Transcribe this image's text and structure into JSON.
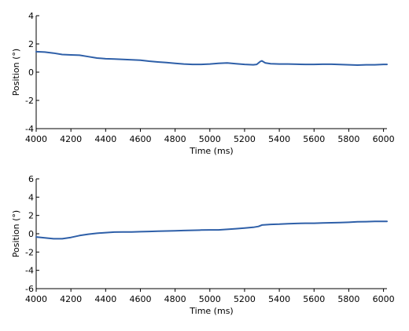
{
  "chart_data": [
    {
      "type": "line",
      "title": "",
      "xlabel": "Time (ms)",
      "ylabel": "Position (°)",
      "xlim": [
        4000,
        6020
      ],
      "ylim": [
        -4,
        4
      ],
      "xticks": [
        4000,
        4200,
        4400,
        4600,
        4800,
        5000,
        5200,
        5400,
        5600,
        5800,
        6000
      ],
      "yticks": [
        -4,
        -2,
        0,
        2,
        4
      ],
      "grid": false,
      "color": "#2e5fa8",
      "series": [
        {
          "x": [
            4000,
            4050,
            4100,
            4150,
            4200,
            4250,
            4300,
            4350,
            4400,
            4450,
            4500,
            4550,
            4600,
            4650,
            4700,
            4750,
            4800,
            4850,
            4900,
            4950,
            5000,
            5050,
            5100,
            5150,
            5200,
            5250,
            5270,
            5290,
            5300,
            5320,
            5350,
            5400,
            5450,
            5500,
            5550,
            5600,
            5650,
            5700,
            5750,
            5800,
            5850,
            5900,
            5950,
            6000,
            6020
          ],
          "y": [
            1.45,
            1.42,
            1.35,
            1.25,
            1.22,
            1.2,
            1.1,
            1.0,
            0.95,
            0.93,
            0.9,
            0.88,
            0.85,
            0.78,
            0.72,
            0.68,
            0.62,
            0.58,
            0.55,
            0.55,
            0.58,
            0.62,
            0.65,
            0.6,
            0.55,
            0.52,
            0.55,
            0.75,
            0.8,
            0.65,
            0.6,
            0.58,
            0.58,
            0.56,
            0.55,
            0.55,
            0.56,
            0.56,
            0.54,
            0.52,
            0.5,
            0.52,
            0.52,
            0.55,
            0.55
          ]
        }
      ]
    },
    {
      "type": "line",
      "title": "",
      "xlabel": "Time (ms)",
      "ylabel": "Position (°)",
      "xlim": [
        4000,
        6020
      ],
      "ylim": [
        -6,
        6
      ],
      "xticks": [
        4000,
        4200,
        4400,
        4600,
        4800,
        5000,
        5200,
        5400,
        5600,
        5800,
        6000
      ],
      "yticks": [
        -6,
        -4,
        -2,
        0,
        2,
        4,
        6
      ],
      "grid": false,
      "color": "#2e5fa8",
      "series": [
        {
          "x": [
            4000,
            4050,
            4100,
            4150,
            4200,
            4250,
            4300,
            4350,
            4400,
            4450,
            4500,
            4550,
            4600,
            4650,
            4700,
            4750,
            4800,
            4850,
            4900,
            4950,
            5000,
            5050,
            5100,
            5150,
            5200,
            5250,
            5280,
            5300,
            5350,
            5400,
            5450,
            5500,
            5550,
            5600,
            5650,
            5700,
            5750,
            5800,
            5850,
            5900,
            5950,
            6000,
            6020
          ],
          "y": [
            -0.35,
            -0.45,
            -0.55,
            -0.55,
            -0.4,
            -0.2,
            -0.05,
            0.05,
            0.12,
            0.18,
            0.2,
            0.2,
            0.22,
            0.25,
            0.28,
            0.3,
            0.32,
            0.35,
            0.38,
            0.4,
            0.42,
            0.42,
            0.48,
            0.55,
            0.62,
            0.7,
            0.8,
            0.95,
            1.02,
            1.05,
            1.1,
            1.12,
            1.15,
            1.15,
            1.18,
            1.2,
            1.22,
            1.25,
            1.3,
            1.32,
            1.35,
            1.35,
            1.35
          ]
        }
      ]
    }
  ]
}
